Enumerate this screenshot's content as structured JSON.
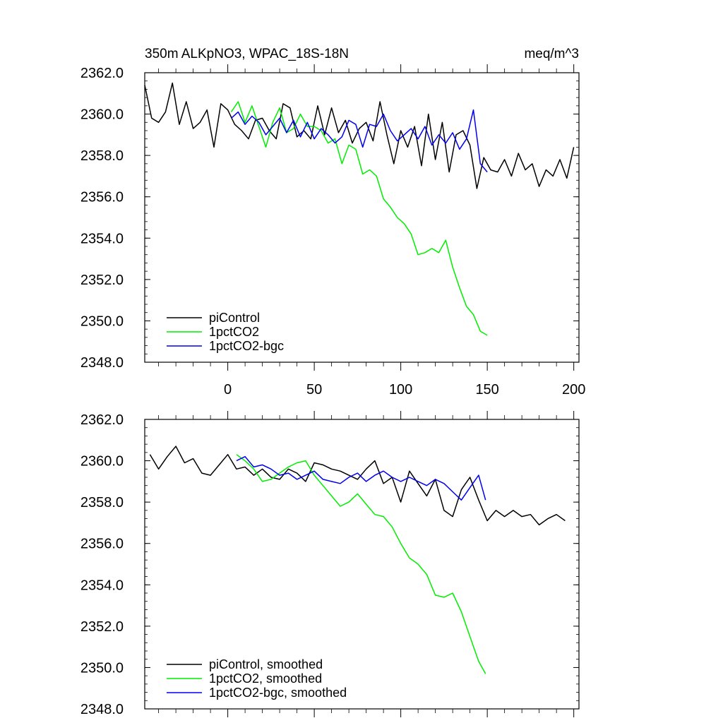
{
  "chart_data": [
    {
      "type": "line",
      "title": "350m ALKpNO3, WPAC_18S-18N",
      "units": "meq/m^3",
      "xlabel": "",
      "ylabel": "",
      "xlim": [
        -48,
        203
      ],
      "ylim": [
        2348.0,
        2362.0
      ],
      "x_ticks": [
        0,
        50,
        100,
        150,
        200
      ],
      "y_ticks": [
        2348.0,
        2350.0,
        2352.0,
        2354.0,
        2356.0,
        2358.0,
        2360.0,
        2362.0
      ],
      "legend_position": "bottom-left",
      "series": [
        {
          "name": "piControl",
          "color": "#000000",
          "x": [
            -48,
            -44,
            -40,
            -36,
            -32,
            -28,
            -24,
            -20,
            -16,
            -12,
            -8,
            -4,
            0,
            4,
            8,
            12,
            16,
            20,
            24,
            28,
            32,
            36,
            40,
            44,
            48,
            52,
            56,
            60,
            64,
            68,
            72,
            76,
            80,
            84,
            88,
            92,
            96,
            100,
            104,
            108,
            112,
            116,
            120,
            124,
            128,
            132,
            136,
            140,
            144,
            148,
            152,
            156,
            160,
            164,
            168,
            172,
            176,
            180,
            184,
            188,
            192,
            196,
            200
          ],
          "values": [
            2361.4,
            2359.8,
            2359.6,
            2360.1,
            2361.5,
            2359.5,
            2360.6,
            2359.3,
            2359.6,
            2360.2,
            2358.4,
            2360.5,
            2360.2,
            2359.5,
            2359.2,
            2358.8,
            2359.7,
            2359.8,
            2359.2,
            2358.8,
            2360.5,
            2360.3,
            2358.9,
            2359.2,
            2358.8,
            2360.4,
            2359.0,
            2360.3,
            2359.1,
            2359.7,
            2358.6,
            2359.3,
            2359.6,
            2358.7,
            2360.6,
            2359.0,
            2357.6,
            2359.2,
            2358.4,
            2359.4,
            2357.5,
            2360.0,
            2357.8,
            2359.6,
            2357.2,
            2359.0,
            2359.2,
            2358.5,
            2356.4,
            2357.9,
            2357.3,
            2357.2,
            2357.8,
            2357.0,
            2358.1,
            2357.3,
            2357.6,
            2356.5,
            2357.3,
            2357.0,
            2357.8,
            2356.9,
            2358.4
          ]
        },
        {
          "name": "1pctCO2",
          "color": "#00ee00",
          "x": [
            2,
            6,
            10,
            14,
            18,
            22,
            26,
            30,
            34,
            38,
            42,
            46,
            50,
            54,
            58,
            62,
            66,
            70,
            74,
            78,
            82,
            86,
            90,
            94,
            98,
            102,
            106,
            110,
            114,
            118,
            122,
            126,
            130,
            134,
            138,
            142,
            146,
            150
          ],
          "values": [
            2360.1,
            2360.6,
            2359.6,
            2360.4,
            2359.4,
            2358.4,
            2359.6,
            2360.3,
            2359.1,
            2359.3,
            2360.0,
            2359.4,
            2359.4,
            2359.2,
            2358.6,
            2358.8,
            2357.6,
            2358.5,
            2358.3,
            2357.1,
            2357.3,
            2357.0,
            2355.9,
            2355.5,
            2355.0,
            2354.7,
            2354.2,
            2353.2,
            2353.3,
            2353.5,
            2353.3,
            2353.9,
            2352.6,
            2351.6,
            2350.7,
            2350.3,
            2349.5,
            2349.3
          ]
        },
        {
          "name": "1pctCO2-bgc",
          "color": "#0000ee",
          "x": [
            2,
            6,
            10,
            14,
            18,
            22,
            26,
            30,
            34,
            38,
            42,
            46,
            50,
            54,
            58,
            62,
            66,
            70,
            74,
            78,
            82,
            86,
            90,
            94,
            98,
            102,
            106,
            110,
            114,
            118,
            122,
            126,
            130,
            134,
            138,
            142,
            146,
            150
          ],
          "values": [
            2359.8,
            2360.1,
            2359.5,
            2359.9,
            2359.6,
            2359.0,
            2359.4,
            2359.8,
            2359.1,
            2359.7,
            2358.9,
            2359.6,
            2358.8,
            2359.3,
            2359.0,
            2358.6,
            2358.9,
            2359.7,
            2359.5,
            2358.4,
            2359.5,
            2359.4,
            2360.0,
            2359.2,
            2358.7,
            2359.0,
            2359.3,
            2358.8,
            2359.4,
            2358.5,
            2359.0,
            2358.6,
            2359.1,
            2358.3,
            2358.8,
            2360.2,
            2357.6,
            2357.2
          ]
        }
      ]
    },
    {
      "type": "line",
      "title": "",
      "xlabel": "",
      "ylabel": "",
      "xlim": [
        -48,
        203
      ],
      "ylim": [
        2348.0,
        2362.0
      ],
      "x_ticks": [
        0,
        50,
        100,
        150,
        200
      ],
      "y_ticks": [
        2348.0,
        2350.0,
        2352.0,
        2354.0,
        2356.0,
        2358.0,
        2360.0,
        2362.0
      ],
      "legend_position": "bottom-left",
      "series": [
        {
          "name": "piControl, smoothed",
          "color": "#000000",
          "x": [
            -45,
            -40,
            -35,
            -30,
            -25,
            -20,
            -15,
            -10,
            -5,
            0,
            5,
            10,
            15,
            20,
            25,
            30,
            35,
            40,
            45,
            50,
            55,
            60,
            65,
            70,
            75,
            80,
            85,
            90,
            95,
            100,
            105,
            110,
            115,
            120,
            125,
            130,
            135,
            140,
            145,
            150,
            155,
            160,
            165,
            170,
            175,
            180,
            185,
            190,
            195
          ],
          "values": [
            2360.3,
            2359.6,
            2360.2,
            2360.7,
            2359.9,
            2360.1,
            2359.4,
            2359.3,
            2359.8,
            2360.3,
            2359.6,
            2359.7,
            2359.3,
            2359.6,
            2359.2,
            2359.1,
            2359.6,
            2359.4,
            2359.0,
            2359.9,
            2359.8,
            2359.6,
            2359.5,
            2359.3,
            2359.1,
            2359.6,
            2360.0,
            2358.9,
            2359.2,
            2358.0,
            2359.5,
            2358.9,
            2358.3,
            2359.1,
            2357.6,
            2357.3,
            2358.6,
            2359.2,
            2358.1,
            2357.1,
            2357.6,
            2357.3,
            2357.6,
            2357.3,
            2357.4,
            2356.9,
            2357.2,
            2357.4,
            2357.1
          ]
        },
        {
          "name": "1pctCO2, smoothed",
          "color": "#00ee00",
          "x": [
            5,
            10,
            15,
            20,
            25,
            30,
            35,
            40,
            45,
            50,
            55,
            60,
            65,
            70,
            75,
            80,
            85,
            90,
            95,
            100,
            105,
            110,
            115,
            120,
            125,
            130,
            135,
            140,
            145,
            149
          ],
          "values": [
            2360.3,
            2360.0,
            2359.6,
            2359.0,
            2359.1,
            2359.4,
            2359.7,
            2359.9,
            2360.0,
            2359.3,
            2358.8,
            2358.3,
            2357.8,
            2358.0,
            2358.4,
            2357.9,
            2357.4,
            2357.3,
            2356.8,
            2356.0,
            2355.3,
            2355.0,
            2354.5,
            2353.5,
            2353.4,
            2353.6,
            2352.7,
            2351.5,
            2350.3,
            2349.7
          ]
        },
        {
          "name": "1pctCO2-bgc, smoothed",
          "color": "#0000ee",
          "x": [
            5,
            10,
            15,
            20,
            25,
            30,
            35,
            40,
            45,
            50,
            55,
            60,
            65,
            70,
            75,
            80,
            85,
            90,
            95,
            100,
            105,
            110,
            115,
            120,
            125,
            130,
            135,
            140,
            145,
            149
          ],
          "values": [
            2360.0,
            2360.2,
            2359.7,
            2359.8,
            2359.6,
            2359.3,
            2359.4,
            2359.1,
            2359.3,
            2359.5,
            2359.1,
            2359.0,
            2358.9,
            2359.2,
            2359.4,
            2359.0,
            2359.3,
            2359.5,
            2359.2,
            2359.0,
            2359.2,
            2359.0,
            2358.8,
            2359.1,
            2358.9,
            2358.5,
            2358.1,
            2358.7,
            2359.3,
            2358.1
          ]
        }
      ]
    }
  ]
}
